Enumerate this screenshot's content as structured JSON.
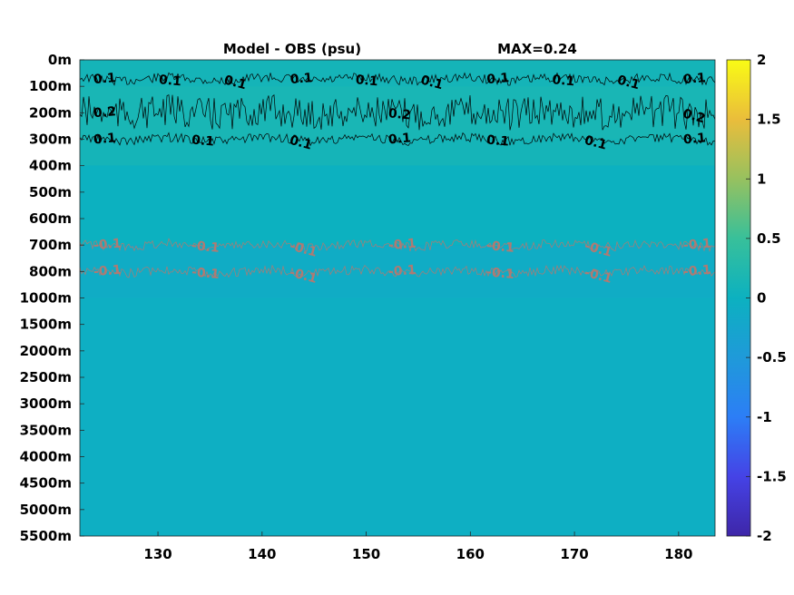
{
  "chart_data": {
    "type": "heatmap",
    "title_left": "Model - OBS (psu)",
    "title_right": "MAX=0.24",
    "xlabel": "",
    "ylabel": "",
    "x_ticks": [
      130,
      140,
      150,
      160,
      170,
      180
    ],
    "xlim": [
      122.5,
      183.5
    ],
    "y_tick_labels": [
      "0m",
      "100m",
      "200m",
      "300m",
      "400m",
      "500m",
      "600m",
      "700m",
      "800m",
      "1000m",
      "1500m",
      "2000m",
      "2500m",
      "3000m",
      "3500m",
      "4000m",
      "4500m",
      "5000m",
      "5500m"
    ],
    "colorbar": {
      "colormap": "parula",
      "limits": [
        -2,
        2
      ],
      "ticks": [
        "2",
        "1.5",
        "1",
        "0.5",
        "0",
        "-0.5",
        "-1",
        "-1.5",
        "-2"
      ]
    },
    "field_bands": [
      {
        "from_label": "0m",
        "to_label": "100m",
        "value": 0.1
      },
      {
        "from_label": "100m",
        "to_label": "300m",
        "value": 0.15
      },
      {
        "from_label": "300m",
        "to_label": "400m",
        "value": 0.1
      },
      {
        "from_label": "400m",
        "to_label": "700m",
        "value": 0.0
      },
      {
        "from_label": "700m",
        "to_label": "1000m",
        "value": -0.1
      },
      {
        "from_label": "1000m",
        "to_label": "5500m",
        "value": -0.05
      }
    ],
    "contours": [
      {
        "level": "0.1",
        "color": "#000000",
        "depth_label": "100m",
        "labels": [
          "0.1",
          "0.1",
          "0.1",
          "0.1",
          "0.1",
          "0.1",
          "0.1",
          "0.1",
          "0.1",
          "0.1"
        ]
      },
      {
        "level": "0.2",
        "color": "#000000",
        "depth_label": "200m",
        "labels": [
          "0.2",
          "0.2",
          "0.2"
        ]
      },
      {
        "level": "0.1",
        "color": "#000000",
        "depth_label": "300m",
        "labels": [
          "0.1",
          "0.1",
          "0.1",
          "0.1",
          "0.1",
          "0.1",
          "0.1"
        ]
      },
      {
        "level": "-0.1",
        "color": "#b07a72",
        "depth_label": "700m",
        "labels": [
          "-0.1",
          "-0.1",
          "-0.1",
          "-0.1",
          "-0.1",
          "-0.1",
          "-0.1"
        ]
      },
      {
        "level": "-0.1",
        "color": "#b07a72",
        "depth_label": "800m",
        "labels": [
          "-0.1",
          "-0.1",
          "-0.1",
          "-0.1",
          "-0.1",
          "-0.1",
          "-0.1"
        ]
      }
    ],
    "grid": false
  }
}
